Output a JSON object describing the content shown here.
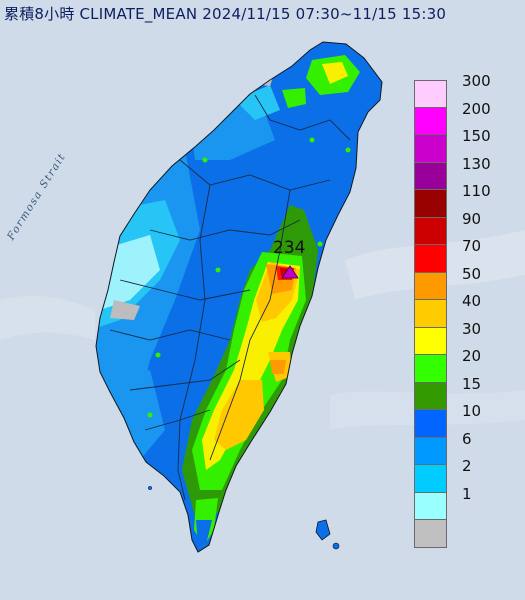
{
  "header": {
    "title": "累積8小時 CLIMATE_MEAN 2024/11/15 07:30~11/15 15:30"
  },
  "map": {
    "strait_label": "Formosa Strait",
    "max_value_label": "234",
    "max_marker_icon": "triangle-marker-icon"
  },
  "legend": {
    "items": [
      {
        "label": "300",
        "color": "#ffccff"
      },
      {
        "label": "200",
        "color": "#ff00ff"
      },
      {
        "label": "150",
        "color": "#cc00cc"
      },
      {
        "label": "130",
        "color": "#990099"
      },
      {
        "label": "110",
        "color": "#990000"
      },
      {
        "label": "90",
        "color": "#cc0000"
      },
      {
        "label": "70",
        "color": "#ff0000"
      },
      {
        "label": "50",
        "color": "#ff9900"
      },
      {
        "label": "40",
        "color": "#ffcc00"
      },
      {
        "label": "30",
        "color": "#ffff00"
      },
      {
        "label": "20",
        "color": "#33ff00"
      },
      {
        "label": "15",
        "color": "#339900"
      },
      {
        "label": "10",
        "color": "#0066ff"
      },
      {
        "label": "6",
        "color": "#0099ff"
      },
      {
        "label": "2",
        "color": "#00ccff"
      },
      {
        "label": "1",
        "color": "#99ffff"
      },
      {
        "label": "",
        "color": "#c0c0c0"
      }
    ]
  }
}
